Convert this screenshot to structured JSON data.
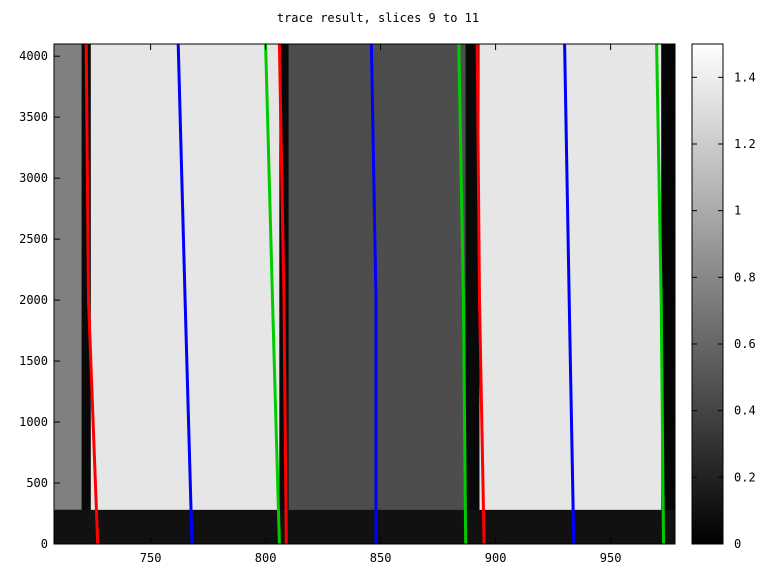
{
  "chart_data": {
    "type": "heatmap",
    "title": "trace result, slices 9 to 11",
    "xlabel": "",
    "ylabel": "",
    "xlim": [
      708,
      978
    ],
    "ylim": [
      0,
      4100
    ],
    "grid": false,
    "x_ticks": [
      "750",
      "800",
      "850",
      "900",
      "950"
    ],
    "x_tick_values": [
      750,
      800,
      850,
      900,
      950
    ],
    "y_ticks": [
      "0",
      "500",
      "1000",
      "1500",
      "2000",
      "2500",
      "3000",
      "3500",
      "4000"
    ],
    "y_tick_values": [
      0,
      500,
      1000,
      1500,
      2000,
      2500,
      3000,
      3500,
      4000
    ],
    "colorbar": {
      "range": [
        0,
        1.5
      ],
      "ticks": [
        "0",
        "0.2",
        "0.4",
        "0.6",
        "0.8",
        "1",
        "1.2",
        "1.4"
      ],
      "tick_values": [
        0,
        0.2,
        0.4,
        0.6,
        0.8,
        1.0,
        1.2,
        1.4
      ],
      "colormap": "gray"
    },
    "bands": [
      {
        "x_start": 720,
        "x_end": 724,
        "level": 0.05
      },
      {
        "x_start": 724,
        "x_end": 806,
        "level": 1.35
      },
      {
        "x_start": 806,
        "x_end": 810,
        "level": 0.05
      },
      {
        "x_start": 810,
        "x_end": 887,
        "level": 0.45
      },
      {
        "x_start": 887,
        "x_end": 893,
        "level": 0.05
      },
      {
        "x_start": 893,
        "x_end": 972,
        "level": 1.35
      }
    ],
    "series": [
      {
        "color": "#ff0000",
        "x": [
          727,
          723,
          722
        ],
        "y": [
          0,
          2000,
          4100
        ]
      },
      {
        "color": "#0000ff",
        "x": [
          768,
          765,
          762
        ],
        "y": [
          0,
          2000,
          4100
        ]
      },
      {
        "color": "#00cc00",
        "x": [
          806,
          803,
          800
        ],
        "y": [
          0,
          2000,
          4100
        ]
      },
      {
        "color": "#ff0000",
        "x": [
          809,
          808,
          806
        ],
        "y": [
          0,
          2000,
          4100
        ]
      },
      {
        "color": "#0000ff",
        "x": [
          848,
          848,
          846
        ],
        "y": [
          0,
          2000,
          4100
        ]
      },
      {
        "color": "#00cc00",
        "x": [
          887,
          886,
          884
        ],
        "y": [
          0,
          2000,
          4100
        ]
      },
      {
        "color": "#ff0000",
        "x": [
          895,
          893,
          892
        ],
        "y": [
          0,
          2000,
          4100
        ]
      },
      {
        "color": "#0000ff",
        "x": [
          934,
          932,
          930
        ],
        "y": [
          0,
          2000,
          4100
        ]
      },
      {
        "color": "#00cc00",
        "x": [
          973,
          972,
          970
        ],
        "y": [
          0,
          2000,
          4100
        ]
      }
    ]
  }
}
